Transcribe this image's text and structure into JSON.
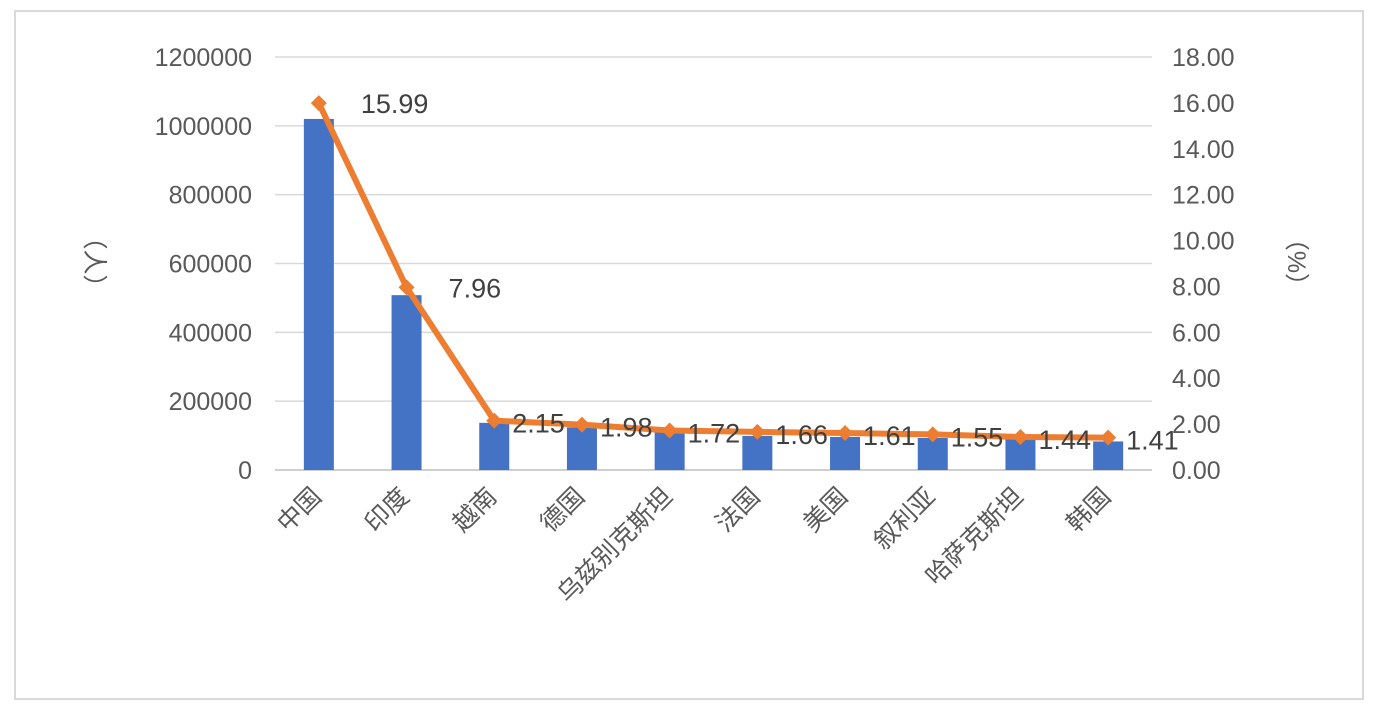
{
  "chart_data": {
    "type": "bar+line",
    "categories": [
      "中国",
      "印度",
      "越南",
      "德国",
      "乌兹别克斯坦",
      "法国",
      "美国",
      "叙利亚",
      "哈萨克斯坦",
      "韩国"
    ],
    "series": [
      {
        "type": "bar",
        "axis": "left",
        "color": "#4472c4",
        "values": [
          1020000,
          508000,
          137000,
          124000,
          114000,
          99000,
          96000,
          93000,
          89000,
          83000
        ]
      },
      {
        "type": "line",
        "axis": "right",
        "color": "#ed7d31",
        "values": [
          15.99,
          7.96,
          2.15,
          1.98,
          1.72,
          1.66,
          1.61,
          1.55,
          1.44,
          1.41
        ],
        "data_labels": [
          "15.99",
          "7.96",
          "2.15",
          "1.98",
          "1.72",
          "1.66",
          "1.61",
          "1.55",
          "1.44",
          "1.41"
        ]
      }
    ],
    "y_left": {
      "label": "（人）",
      "ylim": [
        0,
        1200000
      ],
      "ticks": [
        "1200000",
        "1000000",
        "800000",
        "600000",
        "400000",
        "200000",
        "0"
      ]
    },
    "y_right": {
      "label": "（%）",
      "ylim": [
        0,
        18
      ],
      "ticks": [
        "18.00",
        "16.00",
        "14.00",
        "12.00",
        "10.00",
        "8.00",
        "6.00",
        "4.00",
        "2.00",
        "0.00"
      ]
    },
    "grid": true,
    "legend": "none"
  }
}
